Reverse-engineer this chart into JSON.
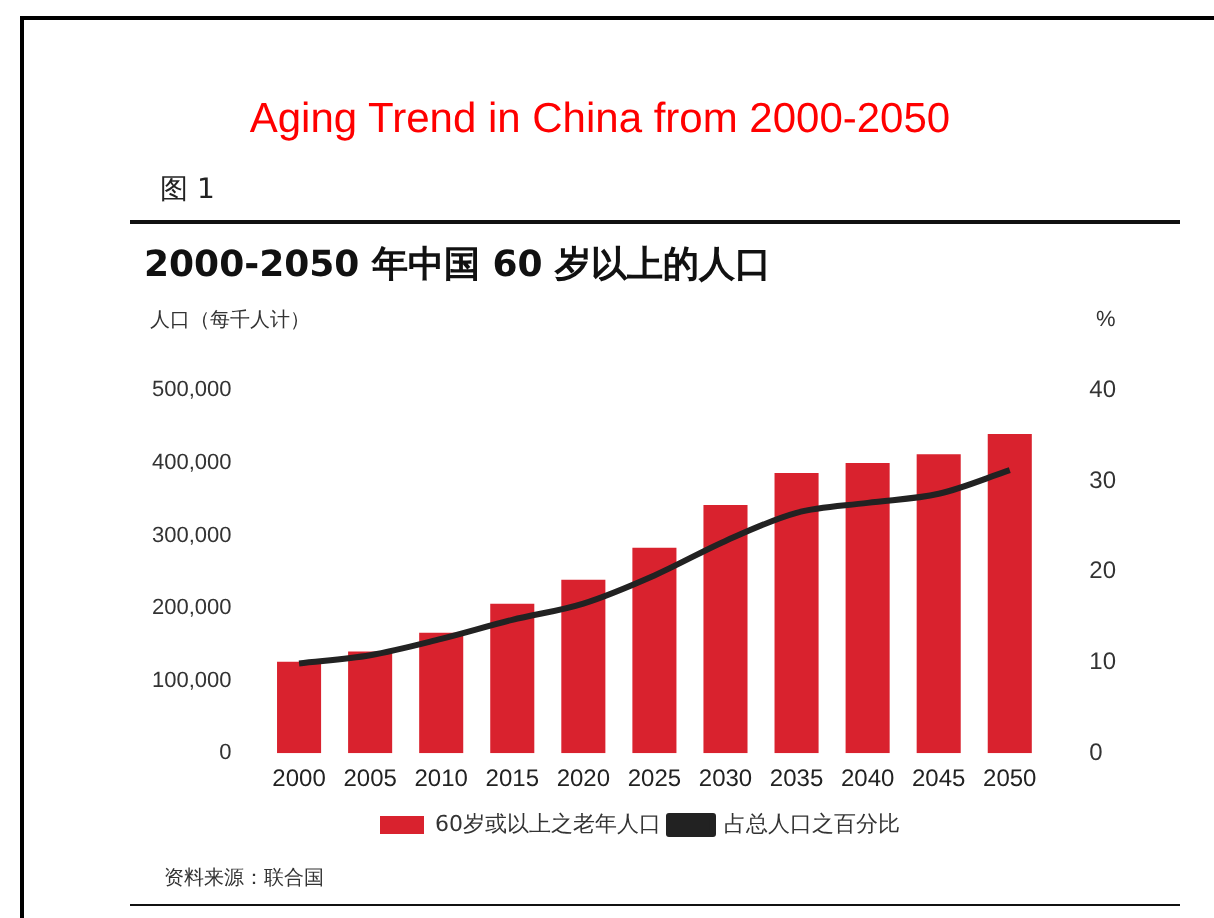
{
  "chart_data": {
    "type": "bar",
    "title": "Aging Trend in China from 2000-2050",
    "subtitle": "2000-2050 年中国 60 岁以上的人口",
    "ylabel": "人口（每千人计）",
    "y2label": "%",
    "annotations": [
      "图 1",
      "资料来源：联合国"
    ],
    "categories": [
      "2000",
      "2005",
      "2010",
      "2015",
      "2020",
      "2025",
      "2030",
      "2035",
      "2040",
      "2045",
      "2050"
    ],
    "series": [
      {
        "name": "60岁或以上之老年人口",
        "color": "#d9222e",
        "values": [
          126000,
          140000,
          166000,
          206000,
          239000,
          283000,
          342000,
          386000,
          400000,
          412000,
          440000
        ]
      },
      {
        "name": "占总人口之百分比",
        "type": "line",
        "axis": "y2",
        "color": "#222222",
        "values": [
          9.9,
          10.8,
          12.6,
          14.7,
          16.5,
          19.6,
          23.4,
          26.5,
          27.6,
          28.6,
          31.2
        ]
      }
    ],
    "ylim": [
      0,
      500000
    ],
    "yticks": [
      0,
      {
        "value": 100000,
        "label": "100,000"
      },
      {
        "value": 200000,
        "label": "200,000"
      },
      {
        "value": 300000,
        "label": "300,000"
      },
      {
        "value": 400000,
        "label": "400,000"
      },
      {
        "value": 500000,
        "label": "500,000"
      }
    ],
    "y2lim": [
      0,
      40
    ],
    "y2ticks": [
      0,
      10,
      20,
      30,
      40
    ],
    "grid": false,
    "legend": "bottom",
    "marker": "none",
    "line_style": "solid"
  }
}
